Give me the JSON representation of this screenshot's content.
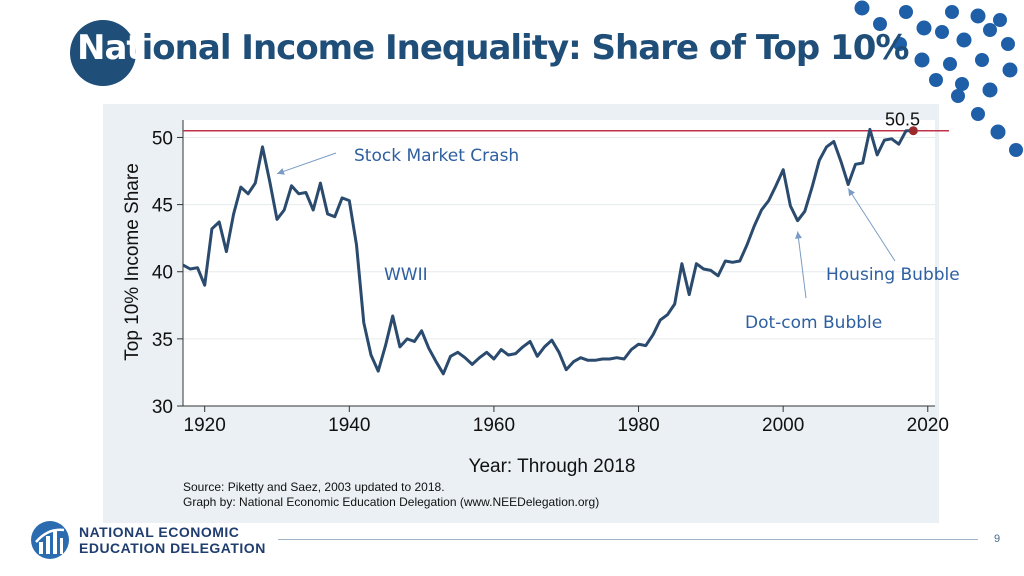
{
  "slide": {
    "title_highlight": "Nat",
    "title_rest": "ional Income Inequality: Share of Top 10%",
    "page_number": "9",
    "accent_color": "#1f4e79",
    "org_line1": "NATIONAL ECONOMIC",
    "org_line2": "EDUCATION DELEGATION",
    "source_line1": "Source: Piketty and Saez, 2003 updated to 2018.",
    "source_line2": "Graph by: National Economic Education Delegation (www.NEEDelegation.org)"
  },
  "chart_data": {
    "type": "line",
    "title": "",
    "xlabel": "Year: Through 2018",
    "ylabel": "Top 10% Income Share",
    "xlim": [
      1917,
      2021
    ],
    "ylim": [
      30,
      51.3
    ],
    "xticks": [
      1920,
      1940,
      1960,
      1980,
      2000,
      2020
    ],
    "yticks": [
      30,
      35,
      40,
      45,
      50
    ],
    "line_color": "#2a4a6e",
    "reference_line": {
      "value": 50.5,
      "label": "50.5",
      "color": "#c0314a"
    },
    "grid": true,
    "series": [
      {
        "x": [
          1917,
          1918,
          1919,
          1920,
          1921,
          1922,
          1923,
          1924,
          1925,
          1926,
          1927,
          1928,
          1929,
          1930,
          1931,
          1932,
          1933,
          1934,
          1935,
          1936,
          1937,
          1938,
          1939,
          1940,
          1941,
          1942,
          1943,
          1944,
          1945,
          1946,
          1947,
          1948,
          1949,
          1950,
          1951,
          1952,
          1953,
          1954,
          1955,
          1956,
          1957,
          1958,
          1959,
          1960,
          1961,
          1962,
          1963,
          1964,
          1965,
          1966,
          1967,
          1968,
          1969,
          1970,
          1971,
          1972,
          1973,
          1974,
          1975,
          1976,
          1977,
          1978,
          1979,
          1980,
          1981,
          1982,
          1983,
          1984,
          1985,
          1986,
          1987,
          1988,
          1989,
          1990,
          1991,
          1992,
          1993,
          1994,
          1995,
          1996,
          1997,
          1998,
          1999,
          2000,
          2001,
          2002,
          2003,
          2004,
          2005,
          2006,
          2007,
          2008,
          2009,
          2010,
          2011,
          2012,
          2013,
          2014,
          2015,
          2016,
          2017,
          2018
        ],
        "values": [
          40.5,
          40.2,
          40.3,
          39.0,
          43.2,
          43.7,
          41.5,
          44.3,
          46.3,
          45.8,
          46.6,
          49.3,
          46.7,
          43.9,
          44.6,
          46.4,
          45.8,
          45.9,
          44.6,
          46.6,
          44.3,
          44.1,
          45.5,
          45.3,
          42.0,
          36.2,
          33.8,
          32.6,
          34.5,
          36.7,
          34.4,
          35.0,
          34.8,
          35.6,
          34.3,
          33.3,
          32.4,
          33.7,
          34.0,
          33.6,
          33.1,
          33.6,
          34.0,
          33.5,
          34.2,
          33.8,
          33.9,
          34.4,
          34.8,
          33.7,
          34.4,
          34.9,
          34.0,
          32.7,
          33.3,
          33.6,
          33.4,
          33.4,
          33.5,
          33.5,
          33.6,
          33.5,
          34.2,
          34.6,
          34.5,
          35.3,
          36.4,
          36.8,
          37.6,
          40.6,
          38.3,
          40.6,
          40.2,
          40.1,
          39.7,
          40.8,
          40.7,
          40.8,
          42.0,
          43.4,
          44.6,
          45.3,
          46.4,
          47.6,
          44.9,
          43.8,
          44.5,
          46.3,
          48.3,
          49.3,
          49.7,
          48.2,
          46.5,
          48.0,
          48.1,
          50.6,
          48.7,
          49.8,
          49.9,
          49.5,
          50.5,
          50.5
        ]
      }
    ],
    "annotations": [
      {
        "name": "crash",
        "text": "Stock Market Crash",
        "target_x": 1930,
        "target_y": 47.3
      },
      {
        "name": "wwii",
        "text": "WWII"
      },
      {
        "name": "housing",
        "text": "Housing Bubble",
        "target_x": 2009,
        "target_y": 46.2
      },
      {
        "name": "dotcom",
        "text": "Dot-com Bubble",
        "target_x": 2002,
        "target_y": 43.0
      }
    ]
  }
}
